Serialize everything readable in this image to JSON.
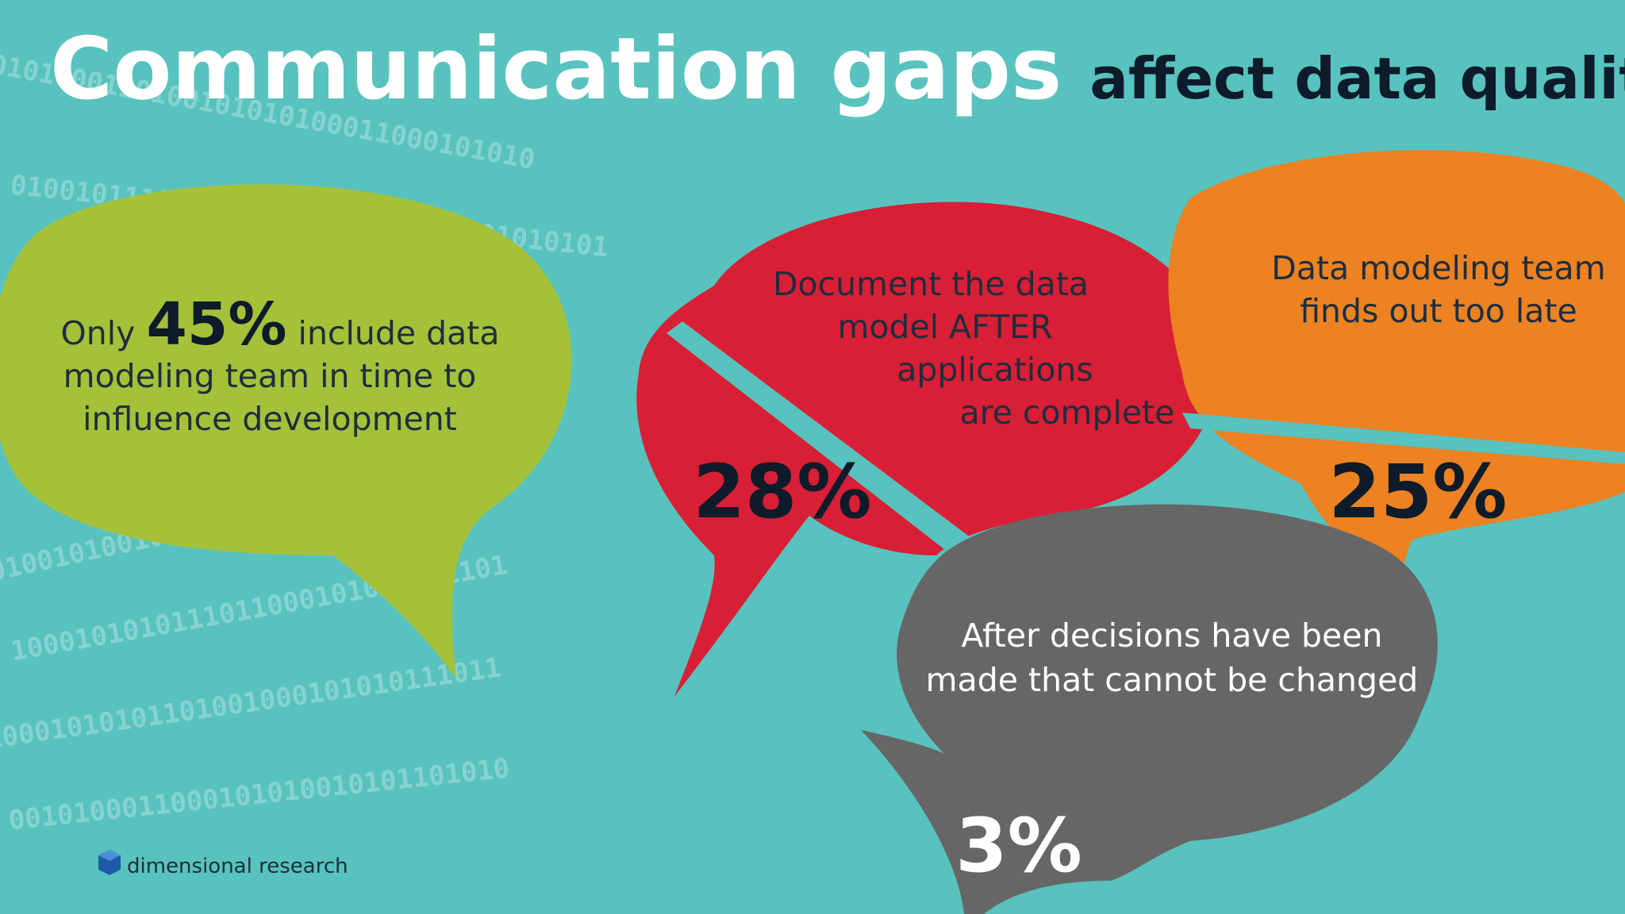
{
  "header": {
    "title_bold": "Communication gaps",
    "title_rest": "affect data quality"
  },
  "bubbles": [
    {
      "prefix": "Only",
      "value": "45%",
      "lines": [
        "include data",
        "modeling team in time to",
        "influence development"
      ]
    },
    {
      "lines": [
        "Document the data",
        "model AFTER",
        "applications",
        "are complete"
      ],
      "value": "28%"
    },
    {
      "lines": [
        "Data modeling team",
        "finds out too late"
      ],
      "value": "25%"
    },
    {
      "lines": [
        "After decisions have been",
        "made that cannot be changed"
      ],
      "value": "3%"
    }
  ],
  "background_binary": [
    "0101000110100101010100011000101010",
    "0100101110100101010100011000101010101",
    "1010010010011101011101001010010",
    "01010010101001110110101001010",
    "010010100100111010101101010010",
    "1000101010111011000101010011101",
    "10001010101101001000101010111011",
    "0010100011000101010010101101010"
  ],
  "footer": {
    "logo": "dimensional research"
  }
}
